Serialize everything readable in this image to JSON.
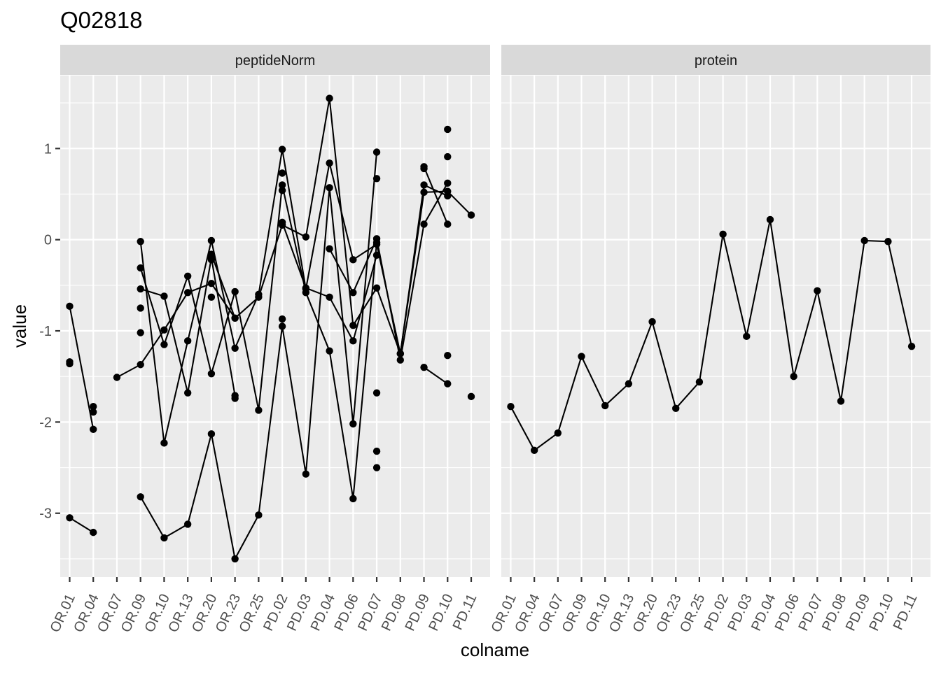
{
  "chart_data": {
    "type": "line",
    "title": "Q02818",
    "xlabel": "colname",
    "ylabel": "value",
    "ylim": [
      -3.7,
      1.8
    ],
    "y_ticks": [
      1,
      0,
      -1,
      -2,
      -3
    ],
    "y_tick_labels": [
      "1",
      "0",
      "-1",
      "-2",
      "-3"
    ],
    "categories": [
      "OR.01",
      "OR.04",
      "OR.07",
      "OR.09",
      "OR.10",
      "OR.13",
      "OR.20",
      "OR.23",
      "OR.25",
      "PD.02",
      "PD.03",
      "PD.04",
      "PD.06",
      "PD.07",
      "PD.08",
      "PD.09",
      "PD.10",
      "PD.11"
    ],
    "grid": true,
    "legend": "none",
    "colors": {
      "panel_bg": "#ebebeb",
      "strip_bg": "#d9d9d9",
      "grid": "#ffffff",
      "marks": "#000000",
      "text": "#4d4d4d"
    },
    "panels": [
      {
        "strip": "peptideNorm",
        "series": [
          {
            "values": [
              -0.73,
              -2.08,
              null,
              -0.02,
              -2.23,
              -1.11,
              -0.01,
              -1.19,
              -0.6,
              0.99,
              -0.54,
              0.84,
              -0.22,
              -0.05,
              -1.25,
              0.6,
              0.48,
              null
            ]
          },
          {
            "values": [
              -3.05,
              -3.21,
              null,
              -2.82,
              -3.27,
              -3.12,
              -2.13,
              -3.5,
              -3.02,
              -0.95,
              -2.57,
              0.57,
              -2.02,
              0.96,
              null,
              null,
              null,
              null
            ]
          },
          {
            "values": [
              null,
              null,
              -1.51,
              -1.37,
              -0.99,
              -0.58,
              -0.48,
              -0.86,
              -0.63,
              0.16,
              0.03,
              1.55,
              -0.94,
              -0.53,
              -1.25,
              0.52,
              0.53,
              0.27
            ]
          },
          {
            "values": [
              null,
              null,
              null,
              -0.31,
              -1.15,
              -0.4,
              -1.47,
              -0.57,
              -1.87,
              0.6,
              -0.58,
              -1.22,
              -2.84,
              -0.03,
              null,
              null,
              null,
              null
            ]
          },
          {
            "values": [
              null,
              null,
              null,
              -0.54,
              -0.62,
              -1.68,
              -0.2,
              -1.71,
              null,
              -0.87,
              null,
              -0.1,
              -0.58,
              0.01,
              -1.32,
              0.17,
              0.62,
              null
            ]
          },
          {
            "values": [
              null,
              null,
              null,
              null,
              null,
              null,
              -0.16,
              -0.86,
              null,
              0.19,
              -0.53,
              -0.63,
              -1.11,
              -0.17,
              null,
              0.8,
              0.17,
              null
            ]
          },
          {
            "values": [
              null,
              null,
              null,
              null,
              null,
              null,
              null,
              null,
              null,
              null,
              null,
              null,
              null,
              null,
              null,
              -1.4,
              -1.58,
              null
            ]
          }
        ],
        "points": [
          [
            -1.34,
            -1.36
          ],
          [
            -1.83,
            -1.89
          ],
          [],
          [
            -0.75,
            -1.02
          ],
          [],
          [],
          [
            -0.22,
            -0.63
          ],
          [
            -1.74
          ],
          [],
          [
            0.73,
            0.54
          ],
          [],
          [],
          [],
          [
            0.67,
            -1.68,
            -2.32,
            -2.5
          ],
          [],
          [
            0.78
          ],
          [
            1.21,
            0.91,
            -1.27
          ],
          [
            -1.72
          ]
        ]
      },
      {
        "strip": "protein",
        "series": [
          {
            "values": [
              -1.83,
              -2.31,
              -2.12,
              -1.28,
              -1.82,
              -1.58,
              -0.9,
              -1.85,
              -1.56,
              0.06,
              -1.06,
              0.22,
              -1.5,
              -0.56,
              -1.77,
              -0.01,
              -0.02,
              -1.17
            ]
          }
        ],
        "points": []
      }
    ]
  }
}
